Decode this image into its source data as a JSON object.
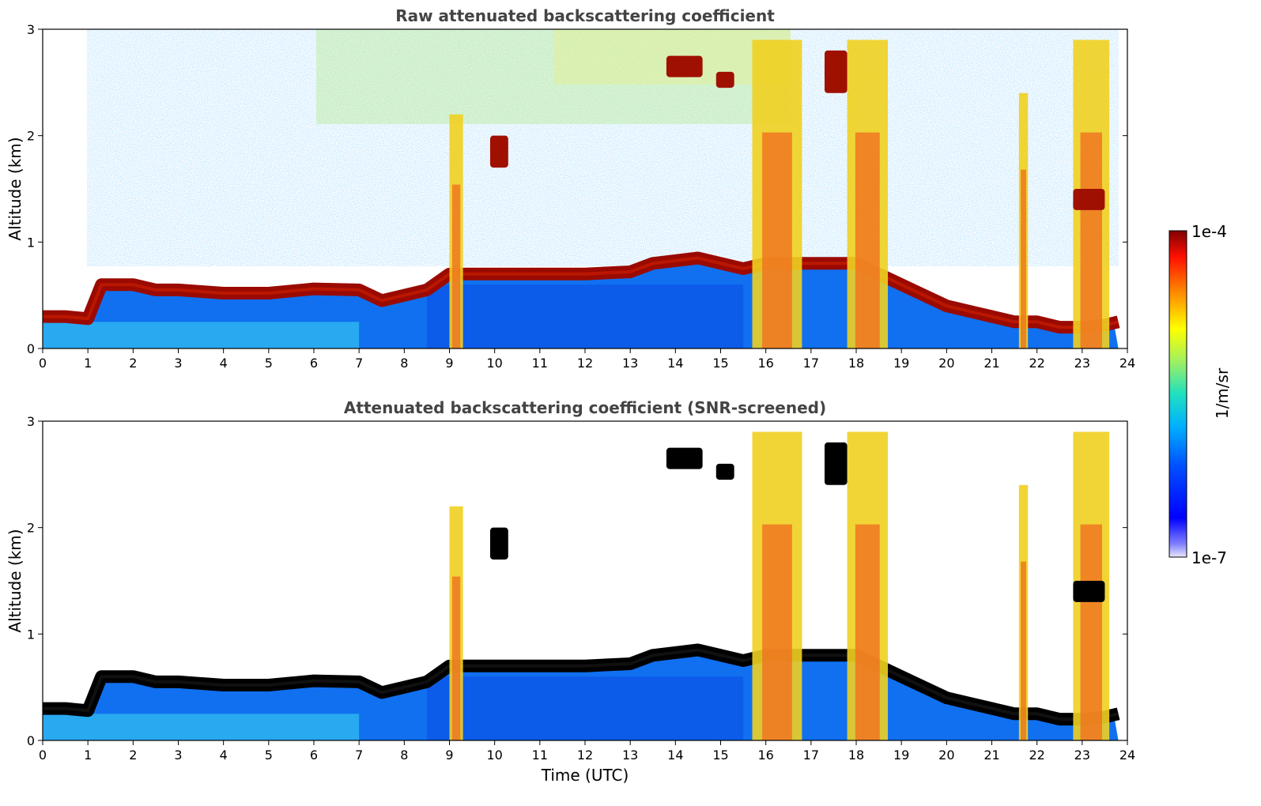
{
  "chart_data": [
    {
      "type": "heatmap",
      "title": "Raw attenuated backscattering coefficient",
      "xlabel": "",
      "ylabel": "Altitude (km)",
      "xlim": [
        0,
        24
      ],
      "ylim": [
        0,
        3
      ],
      "x_ticks": [
        "0",
        "1",
        "2",
        "3",
        "4",
        "5",
        "6",
        "7",
        "8",
        "9",
        "10",
        "11",
        "12",
        "13",
        "14",
        "15",
        "16",
        "17",
        "18",
        "19",
        "20",
        "21",
        "22",
        "23",
        "24"
      ],
      "y_ticks": [
        "0",
        "1",
        "2",
        "3"
      ],
      "screened": false,
      "cloud_base_km": {
        "time_utc": [
          0,
          0.5,
          1.0,
          1.3,
          2.0,
          2.5,
          3,
          4,
          5,
          6,
          7,
          7.5,
          8,
          8.5,
          9,
          10,
          11,
          12,
          13,
          13.5,
          14.5,
          15.5,
          16,
          17,
          18,
          19,
          19.5,
          20,
          20.5,
          21,
          21.5,
          22,
          22.5,
          23,
          23.5,
          23.8
        ],
        "altitude_km": [
          0.3,
          0.3,
          0.28,
          0.6,
          0.6,
          0.55,
          0.55,
          0.52,
          0.52,
          0.56,
          0.55,
          0.45,
          0.5,
          0.55,
          0.7,
          0.7,
          0.7,
          0.7,
          0.72,
          0.8,
          0.85,
          0.75,
          0.8,
          0.8,
          0.8,
          0.6,
          0.5,
          0.4,
          0.35,
          0.3,
          0.25,
          0.25,
          0.2,
          0.2,
          0.22,
          0.25
        ]
      },
      "precip_columns_utc": [
        [
          9.0,
          9.3
        ],
        [
          15.7,
          16.8
        ],
        [
          17.8,
          18.7
        ],
        [
          21.6,
          21.8
        ],
        [
          22.8,
          23.6
        ]
      ],
      "upper_cloud_patches": [
        {
          "time_utc": [
            13.8,
            14.6
          ],
          "altitude_km": [
            2.55,
            2.75
          ]
        },
        {
          "time_utc": [
            14.9,
            15.3
          ],
          "altitude_km": [
            2.45,
            2.6
          ]
        },
        {
          "time_utc": [
            17.3,
            17.8
          ],
          "altitude_km": [
            2.4,
            2.8
          ]
        },
        {
          "time_utc": [
            9.9,
            10.3
          ],
          "altitude_km": [
            1.7,
            2.0
          ]
        },
        {
          "time_utc": [
            22.8,
            23.5
          ],
          "altitude_km": [
            1.3,
            1.5
          ]
        }
      ]
    },
    {
      "type": "heatmap",
      "title": "Attenuated backscattering coefficient (SNR-screened)",
      "xlabel": "Time (UTC)",
      "ylabel": "Altitude (km)",
      "xlim": [
        0,
        24
      ],
      "ylim": [
        0,
        3
      ],
      "x_ticks": [
        "0",
        "1",
        "2",
        "3",
        "4",
        "5",
        "6",
        "7",
        "8",
        "9",
        "10",
        "11",
        "12",
        "13",
        "14",
        "15",
        "16",
        "17",
        "18",
        "19",
        "20",
        "21",
        "22",
        "23",
        "24"
      ],
      "y_ticks": [
        "0",
        "1",
        "2",
        "3"
      ],
      "screened": true,
      "high_value_color": "#000000"
    }
  ],
  "colorbar": {
    "label": "1/m/sr",
    "max_label": "1e-4",
    "min_label": "1e-7",
    "scale": "log",
    "range": [
      1e-07,
      0.0001
    ],
    "colormap": "jet"
  }
}
